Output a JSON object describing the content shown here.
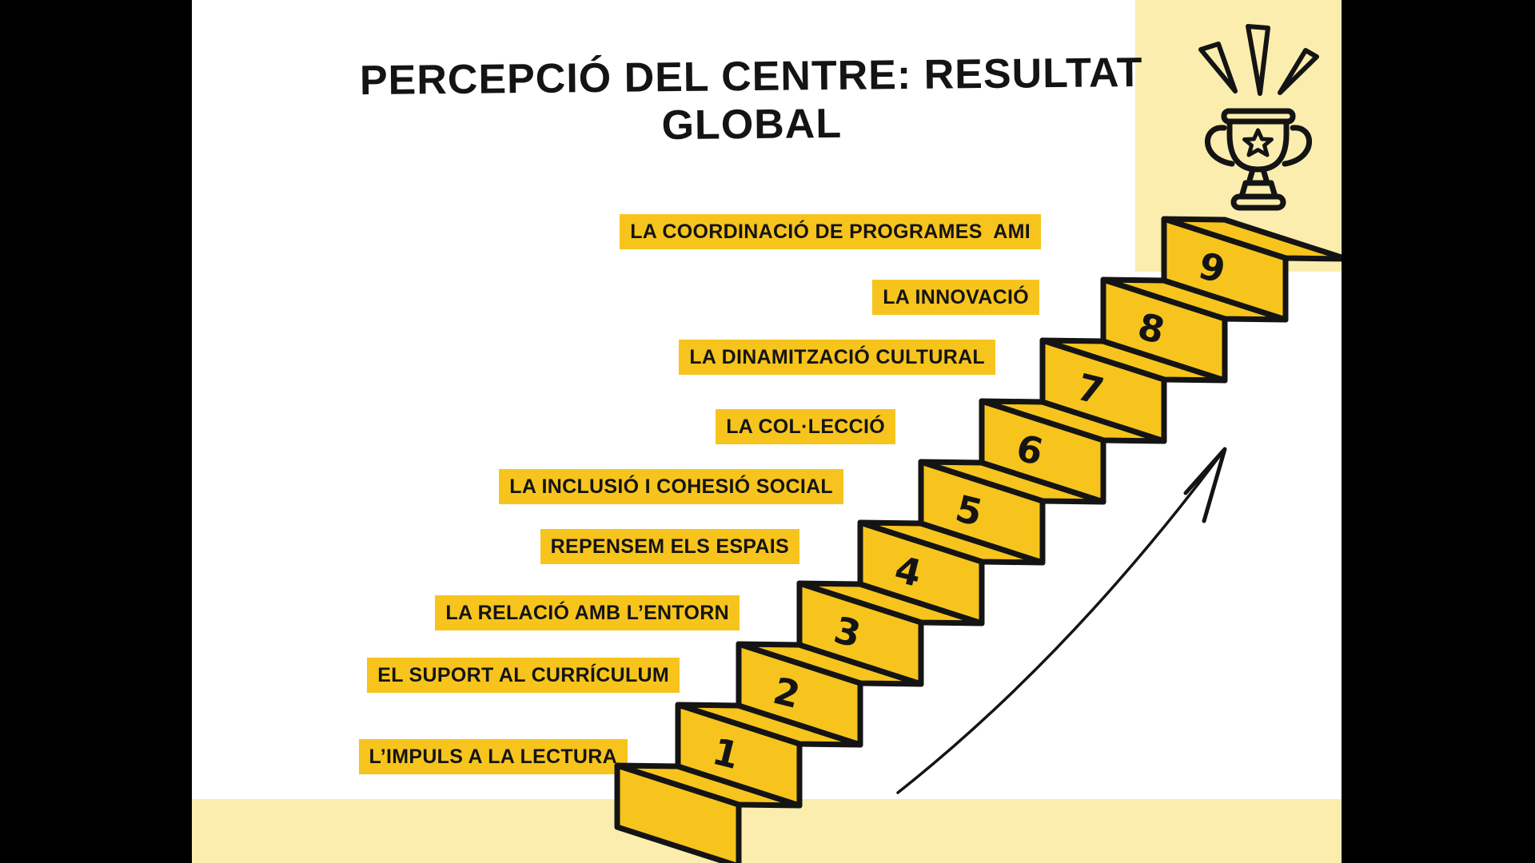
{
  "slide": {
    "title": "PERCEPCIÓ DEL CENTRE: RESULTAT GLOBAL",
    "steps": [
      {
        "number": "1",
        "label": "L’IMPULS A LA LECTURA"
      },
      {
        "number": "2",
        "label": "EL SUPORT AL CURRÍCULUM"
      },
      {
        "number": "3",
        "label": "LA RELACIÓ AMB L’ENTORN"
      },
      {
        "number": "4",
        "label": "REPENSEM ELS ESPAIS"
      },
      {
        "number": "5",
        "label": "LA INCLUSIÓ I COHESIÓ SOCIAL"
      },
      {
        "number": "6",
        "label": "LA COL·LECCIÓ"
      },
      {
        "number": "7",
        "label": "LA DINAMITZACIÓ CULTURAL"
      },
      {
        "number": "8",
        "label": "LA INNOVACIÓ"
      },
      {
        "number": "9",
        "label": "LA COORDINACIÓ DE PROGRAMES  AMI"
      }
    ],
    "icons": {
      "trophy": "trophy-with-star-icon",
      "rays": "celebration-rays-icon",
      "arrow": "ascending-arrow-icon"
    },
    "colors": {
      "gold": "#F7C41D",
      "pale_yellow": "#FBEDAE",
      "ink": "#141414",
      "slide_background": "#FFFFFF",
      "letterbox": "#000000"
    }
  }
}
